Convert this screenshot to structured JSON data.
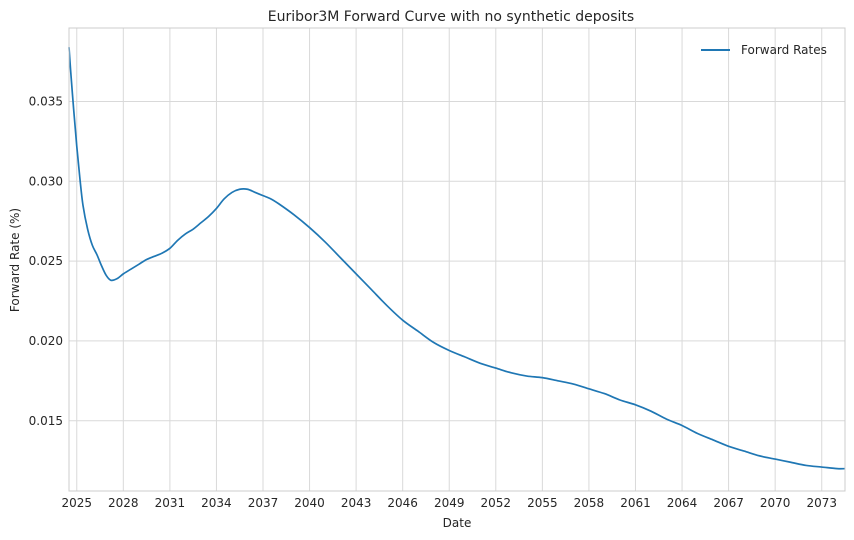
{
  "chart_data": {
    "type": "line",
    "title": "Euribor3M Forward Curve with no synthetic deposits",
    "xlabel": "Date",
    "ylabel": "Forward Rate (%)",
    "xlim": [
      2024.5,
      2074.5
    ],
    "ylim": [
      0.0106,
      0.0396
    ],
    "x_ticks": [
      2025,
      2028,
      2031,
      2034,
      2037,
      2040,
      2043,
      2046,
      2049,
      2052,
      2055,
      2058,
      2061,
      2064,
      2067,
      2070,
      2073
    ],
    "x_tick_labels": [
      "2025",
      "2028",
      "2031",
      "2034",
      "2037",
      "2040",
      "2043",
      "2046",
      "2049",
      "2052",
      "2055",
      "2058",
      "2061",
      "2064",
      "2067",
      "2070",
      "2073"
    ],
    "y_ticks": [
      0.015,
      0.02,
      0.025,
      0.03,
      0.035
    ],
    "y_tick_labels": [
      "0.015",
      "0.020",
      "0.025",
      "0.030",
      "0.035"
    ],
    "grid": true,
    "legend_position": "top-right",
    "colors": {
      "series": "#1f77b4",
      "grid": "#d9d9d9",
      "axes": "#cccccc"
    },
    "series": [
      {
        "name": "Forward Rates",
        "x": [
          2024.5,
          2024.6,
          2024.8,
          2025.0,
          2025.2,
          2025.4,
          2025.7,
          2026.0,
          2026.3,
          2026.6,
          2026.9,
          2027.2,
          2027.6,
          2028.0,
          2028.5,
          2029.0,
          2029.5,
          2030.0,
          2030.5,
          2031.0,
          2031.5,
          2032.0,
          2032.5,
          2033.0,
          2033.5,
          2034.0,
          2034.5,
          2035.0,
          2035.5,
          2036.0,
          2036.5,
          2037.0,
          2037.5,
          2038.0,
          2039.0,
          2040.0,
          2041.0,
          2042.0,
          2043.0,
          2044.0,
          2045.0,
          2046.0,
          2047.0,
          2048.0,
          2049.0,
          2050.0,
          2051.0,
          2052.0,
          2053.0,
          2054.0,
          2055.0,
          2056.0,
          2057.0,
          2058.0,
          2059.0,
          2060.0,
          2061.0,
          2062.0,
          2063.0,
          2064.0,
          2065.0,
          2066.0,
          2067.0,
          2068.0,
          2069.0,
          2070.0,
          2071.0,
          2072.0,
          2073.0,
          2074.0,
          2074.5
        ],
        "y": [
          0.0384,
          0.037,
          0.0345,
          0.0322,
          0.0302,
          0.0285,
          0.027,
          0.026,
          0.0254,
          0.0247,
          0.0241,
          0.0238,
          0.0239,
          0.0242,
          0.0245,
          0.0248,
          0.0251,
          0.0253,
          0.0255,
          0.0258,
          0.0263,
          0.0267,
          0.027,
          0.0274,
          0.0278,
          0.0283,
          0.0289,
          0.0293,
          0.0295,
          0.0295,
          0.0293,
          0.0291,
          0.0289,
          0.0286,
          0.0279,
          0.0271,
          0.0262,
          0.0252,
          0.0242,
          0.0232,
          0.0222,
          0.0213,
          0.0206,
          0.0199,
          0.0194,
          0.019,
          0.0186,
          0.0183,
          0.018,
          0.0178,
          0.0177,
          0.0175,
          0.0173,
          0.017,
          0.0167,
          0.0163,
          0.016,
          0.0156,
          0.0151,
          0.0147,
          0.0142,
          0.0138,
          0.0134,
          0.0131,
          0.0128,
          0.0126,
          0.0124,
          0.0122,
          0.0121,
          0.012,
          0.012
        ]
      }
    ]
  }
}
